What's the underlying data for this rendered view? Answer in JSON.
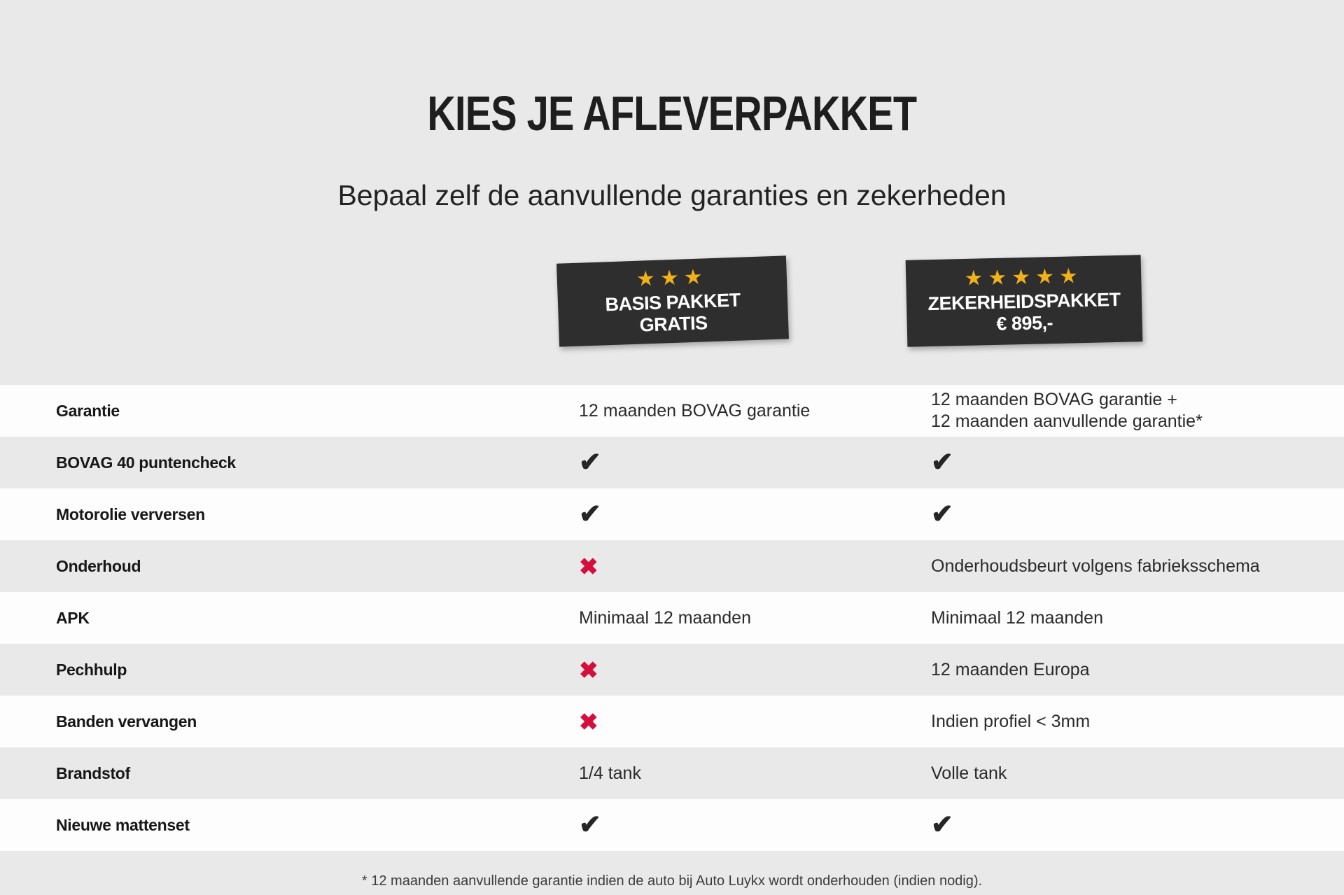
{
  "page": {
    "title": "KIES JE AFLEVERPAKKET",
    "subtitle": "Bepaal zelf de aanvullende garanties en zekerheden",
    "footnote": "* 12 maanden aanvullende garantie indien de auto bij Auto Luykx wordt onderhouden (indien nodig)."
  },
  "colors": {
    "background": "#e9e9e9",
    "row_white": "#fdfdfd",
    "row_gray": "#e9e9e9",
    "badge_background": "#2e2e2e",
    "star": "#f1b11b",
    "check": "#262626",
    "cross": "#d50f3d"
  },
  "icons": {
    "star": "★",
    "check": "✔",
    "cross": "✖"
  },
  "packages": [
    {
      "id": "basis",
      "stars": 3,
      "line1": "BASIS PAKKET",
      "line2": "GRATIS"
    },
    {
      "id": "zekerheid",
      "stars": 5,
      "line1": "ZEKERHEIDSPAKKET",
      "line2": "€ 895,-"
    }
  ],
  "table": {
    "rows": [
      {
        "label": "Garantie",
        "basis": {
          "type": "text",
          "value": "12 maanden BOVAG garantie"
        },
        "zekerheid": {
          "type": "text",
          "value": "12 maanden BOVAG garantie +\n12 maanden aanvullende garantie*"
        }
      },
      {
        "label": "BOVAG 40 puntencheck",
        "basis": {
          "type": "check"
        },
        "zekerheid": {
          "type": "check"
        }
      },
      {
        "label": "Motorolie verversen",
        "basis": {
          "type": "check"
        },
        "zekerheid": {
          "type": "check"
        }
      },
      {
        "label": "Onderhoud",
        "basis": {
          "type": "cross"
        },
        "zekerheid": {
          "type": "text",
          "value": "Onderhoudsbeurt volgens fabrieksschema"
        }
      },
      {
        "label": "APK",
        "basis": {
          "type": "text",
          "value": "Minimaal 12 maanden"
        },
        "zekerheid": {
          "type": "text",
          "value": "Minimaal 12 maanden"
        }
      },
      {
        "label": "Pechhulp",
        "basis": {
          "type": "cross"
        },
        "zekerheid": {
          "type": "text",
          "value": "12 maanden Europa"
        }
      },
      {
        "label": "Banden vervangen",
        "basis": {
          "type": "cross"
        },
        "zekerheid": {
          "type": "text",
          "value": "Indien profiel < 3mm"
        }
      },
      {
        "label": "Brandstof",
        "basis": {
          "type": "text",
          "value": "1/4 tank"
        },
        "zekerheid": {
          "type": "text",
          "value": "Volle tank"
        }
      },
      {
        "label": "Nieuwe mattenset",
        "basis": {
          "type": "check"
        },
        "zekerheid": {
          "type": "check"
        }
      }
    ]
  }
}
